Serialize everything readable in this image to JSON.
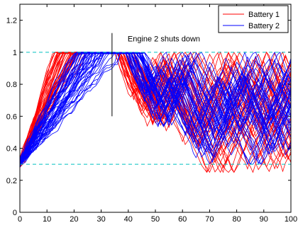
{
  "chart_data": {
    "type": "line",
    "title": "",
    "xlabel": "",
    "ylabel": "",
    "xlim": [
      0,
      100
    ],
    "ylim": [
      0,
      1.3
    ],
    "xticks": [
      0,
      10,
      20,
      30,
      40,
      50,
      60,
      70,
      80,
      90,
      100
    ],
    "yticks": [
      0,
      0.2,
      0.4,
      0.6,
      0.8,
      1,
      1.2
    ],
    "xtick_labels": [
      "0",
      "10",
      "20",
      "30",
      "40",
      "50",
      "60",
      "70",
      "80",
      "90",
      "100"
    ],
    "ytick_labels": [
      "0",
      "0.2",
      "0.4",
      "0.6",
      "0.8",
      "1",
      "1.2"
    ],
    "grid": false,
    "legend_position": "top-right",
    "reference_lines": [
      {
        "y": 1.0,
        "style": "dashed",
        "color": "#00c0c0"
      },
      {
        "y": 0.3,
        "style": "dashed",
        "color": "#00c0c0"
      }
    ],
    "annotation": {
      "text": "Engine 2 shuts down",
      "x": 34,
      "y_range": [
        0.6,
        1.12
      ]
    },
    "series": [
      {
        "name": "Battery 1",
        "color": "#ff0000",
        "trajectory_count": 45,
        "phases": {
          "charge_start": 0.3,
          "charge_end_x_range": [
            12,
            24
          ],
          "full_until_x_range": [
            34,
            42
          ],
          "discharge_min": 0.25,
          "oscillation_region_x": [
            50,
            100
          ]
        }
      },
      {
        "name": "Battery 2",
        "color": "#0000ff",
        "trajectory_count": 45,
        "phases": {
          "charge_start": 0.3,
          "charge_end_x_range": [
            20,
            36
          ],
          "full_until_x_range": [
            38,
            46
          ],
          "discharge_min": 0.3,
          "oscillation_region_x": [
            50,
            100
          ]
        }
      }
    ]
  }
}
